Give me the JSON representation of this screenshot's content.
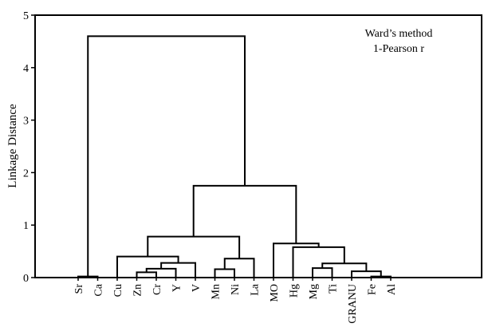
{
  "chart_data": {
    "type": "dendrogram",
    "title": "",
    "annotation_lines": [
      "Ward’s method",
      "1-Pearson r"
    ],
    "ylabel": "Linkage Distance",
    "xlabel": "",
    "ylim": [
      0,
      5
    ],
    "yticks": [
      0,
      1,
      2,
      3,
      4,
      5
    ],
    "leaves": [
      "Sr",
      "Ca",
      "Cu",
      "Zn",
      "Cr",
      "Y",
      "V",
      "Mn",
      "Ni",
      "La",
      "MO",
      "Hg",
      "Mg",
      "Ti",
      "GRANU",
      "Fe",
      "Al"
    ],
    "merges": [
      {
        "left": "L0",
        "right": "L1",
        "height": 0.02,
        "id": "N0"
      },
      {
        "left": "L3",
        "right": "L4",
        "height": 0.1,
        "id": "N1"
      },
      {
        "left": "N1",
        "right": "L5",
        "height": 0.17,
        "id": "N2"
      },
      {
        "left": "N2",
        "right": "L6",
        "height": 0.28,
        "id": "N3"
      },
      {
        "left": "L2",
        "right": "N3",
        "height": 0.4,
        "id": "N4"
      },
      {
        "left": "L7",
        "right": "L8",
        "height": 0.16,
        "id": "N5"
      },
      {
        "left": "N5",
        "right": "L9",
        "height": 0.36,
        "id": "N6"
      },
      {
        "left": "N4",
        "right": "N6",
        "height": 0.78,
        "id": "N7"
      },
      {
        "left": "L15",
        "right": "L16",
        "height": 0.02,
        "id": "N8"
      },
      {
        "left": "L14",
        "right": "N8",
        "height": 0.12,
        "id": "N9"
      },
      {
        "left": "L12",
        "right": "L13",
        "height": 0.18,
        "id": "N10"
      },
      {
        "left": "N10",
        "right": "N9",
        "height": 0.27,
        "id": "N11"
      },
      {
        "left": "L11",
        "right": "N11",
        "height": 0.58,
        "id": "N12"
      },
      {
        "left": "L10",
        "right": "N12",
        "height": 0.65,
        "id": "N13"
      },
      {
        "left": "N7",
        "right": "N13",
        "height": 1.75,
        "id": "N14"
      },
      {
        "left": "N0",
        "right": "N14",
        "height": 4.6,
        "id": "N15"
      }
    ]
  }
}
